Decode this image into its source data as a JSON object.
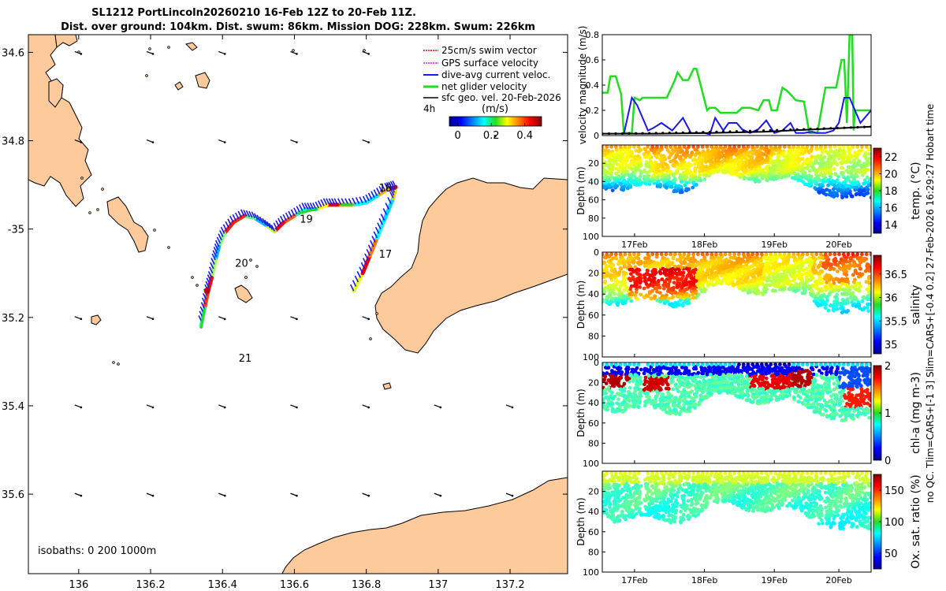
{
  "title_line1": "SL1212 PortLincoln20260210 16-Feb 12Z to 20-Feb 11Z.",
  "title_line2": "Dist. over ground: 104km. Dist. swum: 86km. Mission DOG: 228km. Swum: 226km",
  "side_note": "no QC. Tlim=CARS+[-1 3] Slim=CARS+[-0.4 0.2] 27-Feb-2026 16:29:27 Hobart time",
  "colors": {
    "land": "#fcca9b",
    "green": "#22dd22",
    "blue": "#1a1ae6",
    "black": "#000000",
    "red": "#e01010",
    "magenta": "#e020e0"
  },
  "chart_data": [
    {
      "type": "map",
      "name": "glider-track-map",
      "xlim": [
        135.86,
        137.36
      ],
      "ylim": [
        -35.78,
        -34.56
      ],
      "xticks": [
        136,
        136.2,
        136.4,
        136.6,
        136.8,
        137,
        137.2
      ],
      "xtick_labels": [
        "136",
        "136.2",
        "136.4",
        "136.6",
        "136.8",
        "137",
        "137.2"
      ],
      "yticks": [
        -34.6,
        -34.8,
        -35,
        -35.2,
        -35.4,
        -35.6
      ],
      "ytick_labels": [
        "34.6",
        "34.8",
        "-35",
        "35.2",
        "35.4",
        "35.6"
      ],
      "legend": [
        "25cm/s swim vector",
        "GPS surface velocity",
        "dive-avg current veloc.",
        "net glider velocity",
        "sfc geo. vel. 20-Feb-2026"
      ],
      "legend_scale_label": "4h",
      "colorbar_title": "(m/s)",
      "colorbar_ticks": [
        0,
        0.2,
        0.4
      ],
      "colorbar_tick_labels": [
        "0",
        "0.2",
        "0.4"
      ],
      "isobaths_label": "isobaths: 0   200  1000m",
      "day_labels": [
        {
          "label": "17",
          "lon": 136.835,
          "lat": -35.065
        },
        {
          "label": "18",
          "lon": 136.835,
          "lat": -34.915
        },
        {
          "label": "19",
          "lon": 136.615,
          "lat": -34.985
        },
        {
          "label": "20",
          "lon": 136.435,
          "lat": -35.085
        },
        {
          "label": "21",
          "lon": 136.445,
          "lat": -35.3
        }
      ],
      "track": [
        [
          136.765,
          -35.14
        ],
        [
          136.79,
          -35.1
        ],
        [
          136.81,
          -35.06
        ],
        [
          136.83,
          -35.02
        ],
        [
          136.85,
          -34.98
        ],
        [
          136.875,
          -34.93
        ],
        [
          136.882,
          -34.905
        ],
        [
          136.86,
          -34.91
        ],
        [
          136.83,
          -34.925
        ],
        [
          136.8,
          -34.94
        ],
        [
          136.76,
          -34.945
        ],
        [
          136.72,
          -34.945
        ],
        [
          136.69,
          -34.945
        ],
        [
          136.66,
          -34.955
        ],
        [
          136.63,
          -34.955
        ],
        [
          136.6,
          -34.97
        ],
        [
          136.57,
          -34.985
        ],
        [
          136.545,
          -35.005
        ],
        [
          136.52,
          -34.99
        ],
        [
          136.49,
          -34.975
        ],
        [
          136.46,
          -34.97
        ],
        [
          136.43,
          -34.985
        ],
        [
          136.405,
          -35.01
        ],
        [
          136.39,
          -35.04
        ],
        [
          136.38,
          -35.07
        ],
        [
          136.37,
          -35.11
        ],
        [
          136.36,
          -35.14
        ],
        [
          136.35,
          -35.18
        ],
        [
          136.34,
          -35.22
        ]
      ],
      "geo_vectors": [
        {
          "lon": 136.0,
          "lat": -34.6
        },
        {
          "lon": 136.2,
          "lat": -34.6
        },
        {
          "lon": 136.4,
          "lat": -34.6
        },
        {
          "lon": 136.6,
          "lat": -34.6
        },
        {
          "lon": 136.8,
          "lat": -34.6
        },
        {
          "lon": 136.0,
          "lat": -34.8
        },
        {
          "lon": 136.2,
          "lat": -34.8
        },
        {
          "lon": 136.4,
          "lat": -34.8
        },
        {
          "lon": 136.6,
          "lat": -34.8
        },
        {
          "lon": 136.8,
          "lat": -34.8
        },
        {
          "lon": 136.0,
          "lat": -35.2
        },
        {
          "lon": 136.2,
          "lat": -35.2
        },
        {
          "lon": 136.4,
          "lat": -35.2
        },
        {
          "lon": 136.6,
          "lat": -35.2
        },
        {
          "lon": 136.8,
          "lat": -35.2
        },
        {
          "lon": 136.0,
          "lat": -35.4
        },
        {
          "lon": 136.2,
          "lat": -35.4
        },
        {
          "lon": 136.4,
          "lat": -35.4
        },
        {
          "lon": 136.6,
          "lat": -35.4
        },
        {
          "lon": 136.8,
          "lat": -35.4
        },
        {
          "lon": 137.0,
          "lat": -35.4
        },
        {
          "lon": 137.2,
          "lat": -35.4
        },
        {
          "lon": 136.0,
          "lat": -35.6
        },
        {
          "lon": 136.2,
          "lat": -35.6
        },
        {
          "lon": 136.4,
          "lat": -35.6
        },
        {
          "lon": 136.6,
          "lat": -35.6
        },
        {
          "lon": 136.8,
          "lat": -35.6
        },
        {
          "lon": 137.0,
          "lat": -35.6
        },
        {
          "lon": 137.2,
          "lat": -35.6
        }
      ]
    },
    {
      "type": "line",
      "name": "velocity-panel",
      "xlim": [
        0,
        1
      ],
      "ylim": [
        0,
        0.8
      ],
      "yticks": [
        0,
        0.2,
        0.4,
        0.6,
        0.8
      ],
      "ytick_labels": [
        "0",
        "0.2",
        "0.4",
        "0.6",
        "0.8"
      ],
      "ylabel": "velocity magnitude (m/s)",
      "series": [
        {
          "name": "net glider velocity",
          "color": "#22dd22",
          "x": [
            0,
            0.02,
            0.03,
            0.05,
            0.07,
            0.08,
            0.11,
            0.12,
            0.14,
            0.15,
            0.17,
            0.19,
            0.22,
            0.24,
            0.27,
            0.28,
            0.3,
            0.32,
            0.34,
            0.35,
            0.39,
            0.4,
            0.42,
            0.44,
            0.47,
            0.5,
            0.52,
            0.55,
            0.58,
            0.6,
            0.62,
            0.63,
            0.65,
            0.67,
            0.69,
            0.72,
            0.75,
            0.77,
            0.8,
            0.83,
            0.87,
            0.89,
            0.9,
            0.91,
            0.92,
            0.93,
            0.935,
            0.94,
            0.96,
            1.0
          ],
          "y": [
            0.34,
            0.34,
            0.47,
            0.47,
            0.33,
            0.02,
            0.02,
            0.3,
            0.28,
            0.3,
            0.3,
            0.3,
            0.3,
            0.3,
            0.44,
            0.5,
            0.44,
            0.44,
            0.53,
            0.53,
            0.2,
            0.22,
            0.22,
            0.18,
            0.18,
            0.18,
            0.22,
            0.22,
            0.2,
            0.28,
            0.28,
            0.2,
            0.2,
            0.38,
            0.35,
            0.28,
            0.27,
            0.02,
            0.02,
            0.38,
            0.38,
            0.6,
            0.6,
            0.1,
            0.8,
            0.8,
            0.04,
            0.2,
            0.2,
            0.2
          ]
        },
        {
          "name": "dive-avg current veloc.",
          "color": "#1a1ae6",
          "x": [
            0.08,
            0.11,
            0.13,
            0.17,
            0.19,
            0.22,
            0.26,
            0.3,
            0.31,
            0.33,
            0.38,
            0.4,
            0.42,
            0.45,
            0.47,
            0.5,
            0.52,
            0.55,
            0.58,
            0.61,
            0.64,
            0.67,
            0.7,
            0.72,
            0.75,
            0.78,
            0.8,
            0.83,
            0.86,
            0.88,
            0.9,
            0.92,
            0.96,
            1.0
          ],
          "y": [
            0.01,
            0.3,
            0.24,
            0.04,
            0.06,
            0.1,
            0.04,
            0.14,
            0.1,
            0.02,
            0.02,
            0.01,
            0.14,
            0.04,
            0.1,
            0.1,
            0.05,
            0.02,
            0.05,
            0.12,
            0.02,
            0.04,
            0.1,
            0.02,
            0.02,
            0.03,
            0.02,
            0.02,
            0.04,
            0.1,
            0.3,
            0.3,
            0.1,
            0.2
          ]
        },
        {
          "name": "sfc geo. vel.",
          "color": "#000000",
          "x": [
            0,
            0.2,
            0.4,
            0.6,
            0.8,
            1.0
          ],
          "y": [
            0.015,
            0.015,
            0.02,
            0.03,
            0.05,
            0.07
          ]
        }
      ]
    },
    {
      "type": "heatmap",
      "name": "temperature-panel",
      "ylabel": "Depth (m)",
      "yticks": [
        20,
        40,
        60,
        80
      ],
      "ylim": [
        100,
        0
      ],
      "colorbar_label": "temp. (°C)",
      "colorbar_ticks": [
        14,
        16,
        18,
        20,
        22
      ],
      "colorbar_range": [
        13,
        23
      ],
      "xticks": [
        "17Feb",
        "18Feb",
        "19Feb",
        "20Feb"
      ]
    },
    {
      "type": "heatmap",
      "name": "salinity-panel",
      "ylabel": "Depth (m)",
      "yticks": [
        0,
        20,
        40,
        60,
        80
      ],
      "ylim": [
        100,
        0
      ],
      "colorbar_label": "salinity",
      "colorbar_ticks": [
        35,
        35.5,
        36,
        36.5
      ],
      "colorbar_range": [
        34.8,
        36.9
      ]
    },
    {
      "type": "heatmap",
      "name": "chlorophyll-panel",
      "ylabel": "Depth (m)",
      "yticks": [
        0,
        20,
        40,
        60,
        80
      ],
      "ylim": [
        100,
        0
      ],
      "colorbar_label": "chl-a (mg m-3)",
      "colorbar_ticks": [
        0,
        1,
        2
      ],
      "colorbar_range": [
        0,
        2
      ]
    },
    {
      "type": "heatmap",
      "name": "oxygen-panel",
      "ylabel": "Depth (m)",
      "yticks": [
        20,
        40,
        60,
        80,
        100
      ],
      "ylim": [
        100,
        0
      ],
      "colorbar_label": "Ox. sat. ratio (%)",
      "colorbar_ticks": [
        50,
        100,
        150
      ],
      "colorbar_range": [
        25,
        175
      ],
      "xticks": [
        "17Feb",
        "18Feb",
        "19Feb",
        "20Feb"
      ]
    }
  ]
}
